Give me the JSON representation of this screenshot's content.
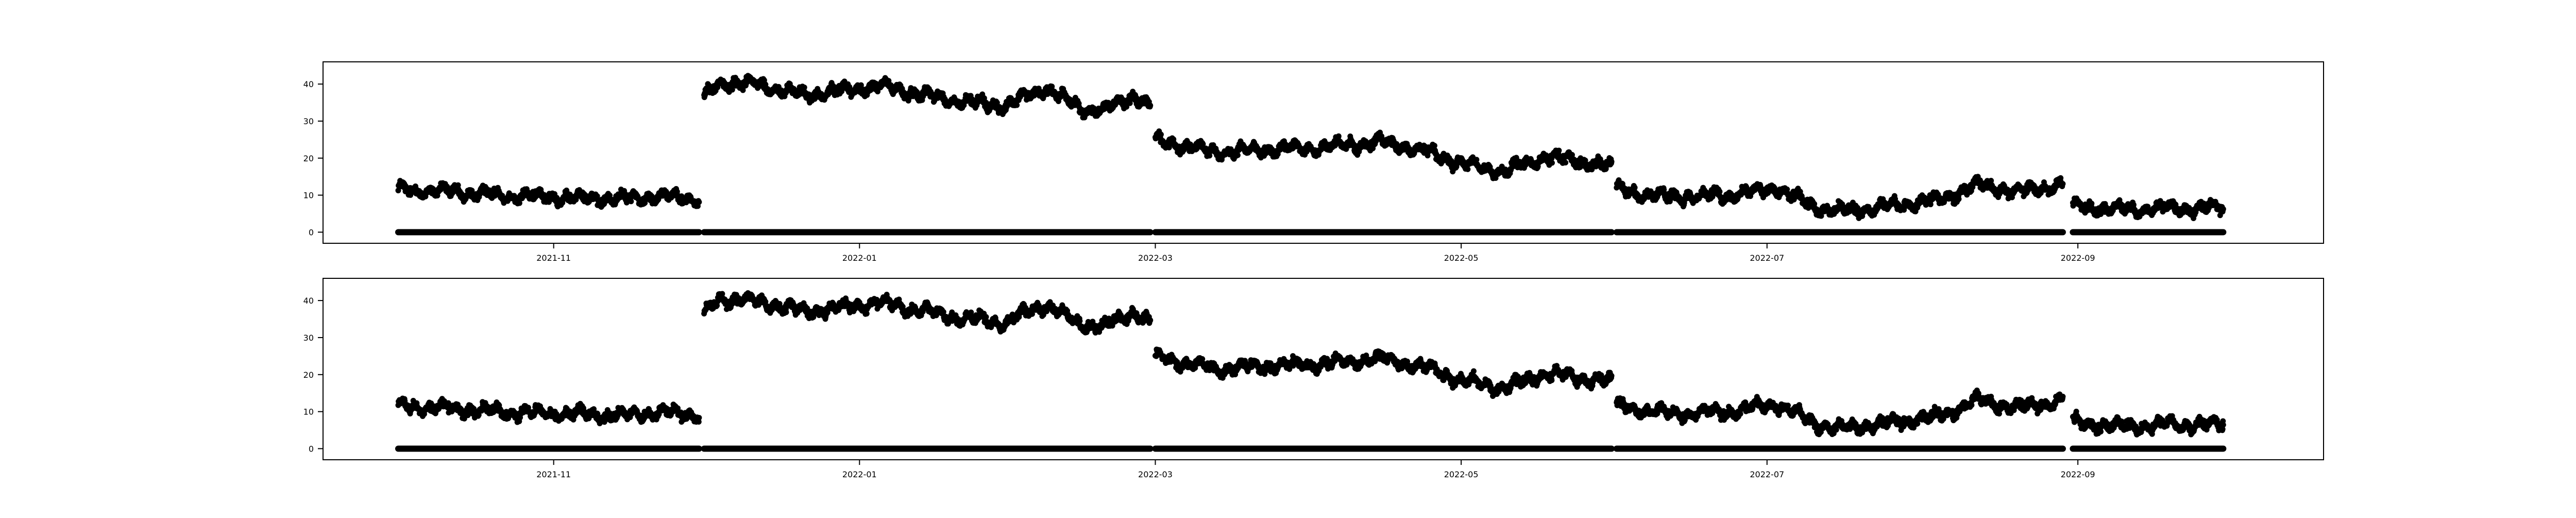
{
  "chart_data": [
    {
      "type": "scatter",
      "title": "",
      "xlabel": "",
      "ylabel": "",
      "x_range": [
        "2021-09-16",
        "2022-10-20"
      ],
      "ylim": [
        -3,
        46
      ],
      "xticks": [
        "2021-11",
        "2022-01",
        "2022-03",
        "2022-05",
        "2022-07",
        "2022-09"
      ],
      "yticks": [
        0,
        10,
        20,
        30,
        40
      ],
      "grid": false,
      "legend": "none",
      "marker_color": "#000000",
      "segments": [
        {
          "start": "2021-10-01",
          "end": "2021-11-30",
          "y": [
            [
              0,
              11.5
            ],
            [
              10,
              11.0
            ],
            [
              20,
              10.0
            ],
            [
              30,
              9.5
            ],
            [
              45,
              9.0
            ],
            [
              52,
              9.8
            ],
            [
              60,
              9.0
            ]
          ]
        },
        {
          "start": "2021-12-01",
          "end": "2022-02-28",
          "y": [
            [
              0,
              36.0
            ],
            [
              3,
              40.5
            ],
            [
              10,
              40.0
            ],
            [
              20,
              37.0
            ],
            [
              35,
              39.5
            ],
            [
              50,
              35.5
            ],
            [
              60,
              34.0
            ],
            [
              68,
              39.0
            ],
            [
              75,
              33.5
            ],
            [
              80,
              33.0
            ],
            [
              86,
              37.0
            ],
            [
              90,
              33.0
            ]
          ]
        },
        {
          "start": "2022-03-01",
          "end": "2022-05-31",
          "y": [
            [
              0,
              24.5
            ],
            [
              5,
              23.5
            ],
            [
              12,
              21.5
            ],
            [
              25,
              22.5
            ],
            [
              35,
              23.0
            ],
            [
              45,
              24.5
            ],
            [
              55,
              21.5
            ],
            [
              62,
              18.0
            ],
            [
              70,
              16.5
            ],
            [
              78,
              20.5
            ],
            [
              85,
              19.0
            ],
            [
              92,
              17.5
            ]
          ]
        },
        {
          "start": "2022-06-01",
          "end": "2022-08-29",
          "y": [
            [
              0,
              11.5
            ],
            [
              10,
              9.5
            ],
            [
              22,
              10.0
            ],
            [
              32,
              12.0
            ],
            [
              40,
              6.5
            ],
            [
              45,
              5.5
            ],
            [
              55,
              7.0
            ],
            [
              65,
              9.0
            ],
            [
              72,
              13.0
            ],
            [
              80,
              11.0
            ],
            [
              89,
              13.0
            ]
          ]
        },
        {
          "start": "2022-08-31",
          "end": "2022-09-30",
          "y": [
            [
              0,
              7.0
            ],
            [
              10,
              6.0
            ],
            [
              20,
              6.5
            ],
            [
              30,
              6.5
            ]
          ]
        }
      ],
      "baseline": {
        "y": 0,
        "ranges": [
          [
            "2021-10-01",
            "2021-11-30"
          ],
          [
            "2021-12-01",
            "2022-02-28"
          ],
          [
            "2022-03-01",
            "2022-05-31"
          ],
          [
            "2022-06-01",
            "2022-08-29"
          ],
          [
            "2022-08-31",
            "2022-09-30"
          ]
        ]
      }
    },
    {
      "type": "scatter",
      "title": "",
      "xlabel": "",
      "ylabel": "",
      "x_range": [
        "2021-09-16",
        "2022-10-20"
      ],
      "ylim": [
        -3,
        46
      ],
      "xticks": [
        "2021-11",
        "2022-01",
        "2022-03",
        "2022-05",
        "2022-07",
        "2022-09"
      ],
      "yticks": [
        0,
        10,
        20,
        30,
        40
      ],
      "grid": false,
      "legend": "none",
      "marker_color": "#000000",
      "segments": [
        {
          "start": "2021-10-01",
          "end": "2021-11-30",
          "y": [
            [
              0,
              11.5
            ],
            [
              10,
              11.0
            ],
            [
              20,
              10.0
            ],
            [
              30,
              9.5
            ],
            [
              45,
              9.0
            ],
            [
              52,
              9.8
            ],
            [
              60,
              9.0
            ]
          ]
        },
        {
          "start": "2021-12-01",
          "end": "2022-02-28",
          "y": [
            [
              0,
              36.0
            ],
            [
              3,
              40.5
            ],
            [
              10,
              40.0
            ],
            [
              20,
              37.0
            ],
            [
              35,
              39.5
            ],
            [
              50,
              35.5
            ],
            [
              60,
              34.0
            ],
            [
              68,
              39.0
            ],
            [
              75,
              33.5
            ],
            [
              80,
              33.0
            ],
            [
              86,
              37.0
            ],
            [
              90,
              33.0
            ]
          ]
        },
        {
          "start": "2022-03-01",
          "end": "2022-05-31",
          "y": [
            [
              0,
              24.5
            ],
            [
              5,
              23.5
            ],
            [
              12,
              21.5
            ],
            [
              25,
              22.5
            ],
            [
              35,
              23.0
            ],
            [
              45,
              24.5
            ],
            [
              55,
              21.5
            ],
            [
              62,
              18.0
            ],
            [
              70,
              16.5
            ],
            [
              78,
              20.5
            ],
            [
              85,
              19.0
            ],
            [
              92,
              17.5
            ]
          ]
        },
        {
          "start": "2022-06-01",
          "end": "2022-08-29",
          "y": [
            [
              0,
              11.5
            ],
            [
              10,
              9.5
            ],
            [
              22,
              10.0
            ],
            [
              32,
              12.0
            ],
            [
              40,
              6.5
            ],
            [
              45,
              5.5
            ],
            [
              55,
              7.0
            ],
            [
              65,
              9.0
            ],
            [
              72,
              13.0
            ],
            [
              80,
              11.0
            ],
            [
              89,
              13.0
            ]
          ]
        },
        {
          "start": "2022-08-31",
          "end": "2022-09-30",
          "y": [
            [
              0,
              7.0
            ],
            [
              10,
              6.0
            ],
            [
              20,
              6.5
            ],
            [
              30,
              6.5
            ]
          ]
        }
      ],
      "baseline": {
        "y": 0,
        "ranges": [
          [
            "2021-10-01",
            "2021-11-30"
          ],
          [
            "2021-12-01",
            "2022-02-28"
          ],
          [
            "2022-03-01",
            "2022-05-31"
          ],
          [
            "2022-06-01",
            "2022-08-29"
          ],
          [
            "2022-08-31",
            "2022-09-30"
          ]
        ]
      }
    }
  ]
}
